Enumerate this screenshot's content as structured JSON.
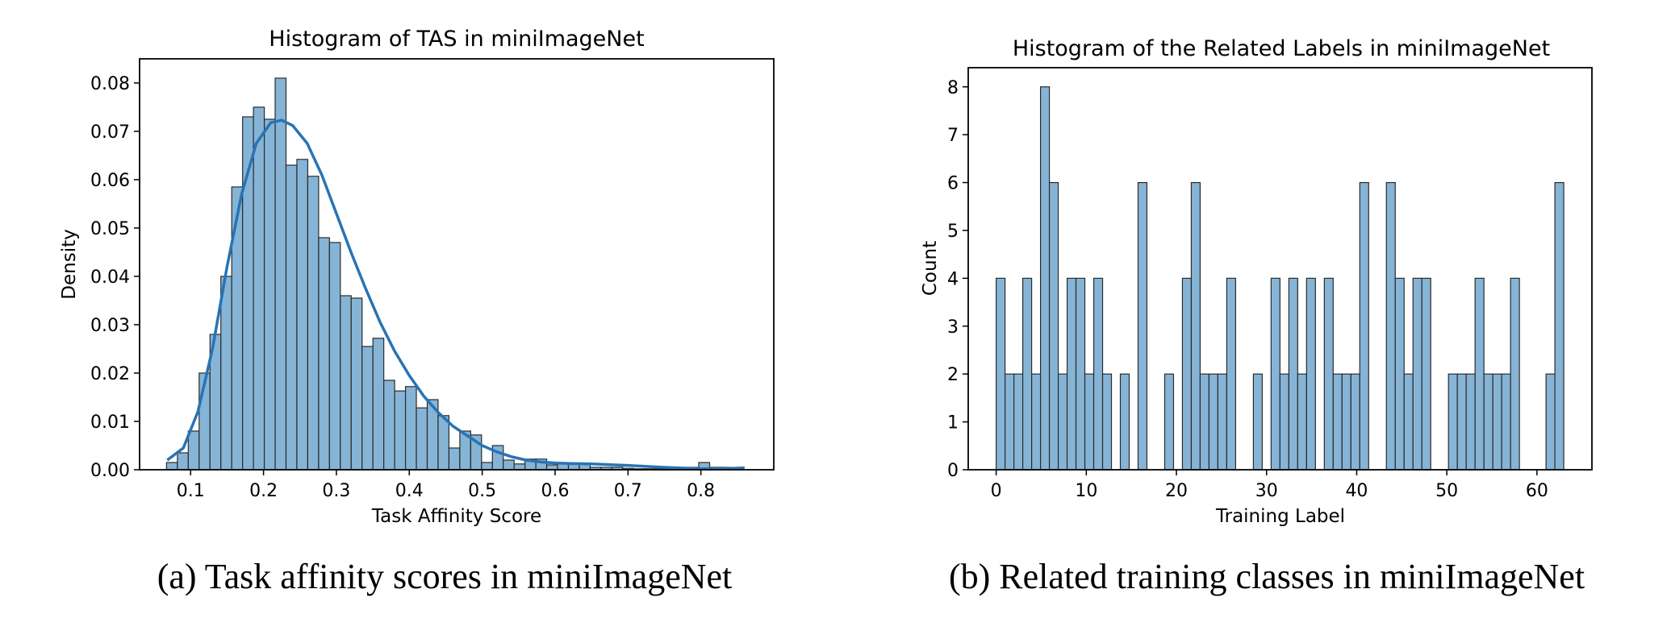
{
  "chart_data": [
    {
      "type": "bar",
      "title": "Histogram of TAS in miniImageNet",
      "xlabel": "Task Affinity Score",
      "ylabel": "Density",
      "xlim": [
        0.03,
        0.9
      ],
      "ylim": [
        0,
        0.085
      ],
      "xticks": [
        0.1,
        0.2,
        0.3,
        0.4,
        0.5,
        0.6,
        0.7,
        0.8
      ],
      "xtick_labels": [
        "0.1",
        "0.2",
        "0.3",
        "0.4",
        "0.5",
        "0.6",
        "0.7",
        "0.8"
      ],
      "yticks": [
        0,
        0.01,
        0.02,
        0.03,
        0.04,
        0.05,
        0.06,
        0.07,
        0.08
      ],
      "ytick_labels": [
        "0.00",
        "0.01",
        "0.02",
        "0.03",
        "0.04",
        "0.05",
        "0.06",
        "0.07",
        "0.08"
      ],
      "bin_start": 0.067,
      "bin_width": 0.0149,
      "values": [
        0.0015,
        0.0035,
        0.008,
        0.02,
        0.028,
        0.04,
        0.0585,
        0.073,
        0.075,
        0.0725,
        0.081,
        0.063,
        0.0642,
        0.0607,
        0.048,
        0.047,
        0.036,
        0.0355,
        0.0255,
        0.0272,
        0.0185,
        0.0163,
        0.0172,
        0.0128,
        0.0145,
        0.0112,
        0.0045,
        0.008,
        0.0072,
        0.0015,
        0.005,
        0.002,
        0.0012,
        0.0022,
        0.0022,
        0.001,
        0.0012,
        0.0012,
        0.0012,
        0.0005,
        0.0005,
        0.0005,
        0.0003,
        0.0002,
        0.0002,
        0.0002,
        0.0002,
        0.0003,
        0.0005,
        0.0015,
        0.0005,
        0.0005
      ],
      "kde": {
        "x": [
          0.068,
          0.09,
          0.11,
          0.13,
          0.15,
          0.17,
          0.19,
          0.21,
          0.225,
          0.24,
          0.26,
          0.28,
          0.3,
          0.32,
          0.34,
          0.36,
          0.38,
          0.4,
          0.42,
          0.44,
          0.46,
          0.48,
          0.5,
          0.52,
          0.54,
          0.56,
          0.58,
          0.6,
          0.62,
          0.65,
          0.7,
          0.75,
          0.8,
          0.83,
          0.86
        ],
        "y": [
          0.002,
          0.0045,
          0.012,
          0.025,
          0.042,
          0.057,
          0.0675,
          0.0718,
          0.0723,
          0.0712,
          0.0675,
          0.061,
          0.053,
          0.045,
          0.0375,
          0.0305,
          0.0245,
          0.0195,
          0.0152,
          0.0118,
          0.009,
          0.007,
          0.005,
          0.0037,
          0.0027,
          0.002,
          0.0016,
          0.0014,
          0.0013,
          0.0012,
          0.0009,
          0.0005,
          0.0002,
          0.0002,
          0.0004
        ]
      },
      "bar_color": "#86b4d6",
      "line_color": "#2774b5"
    },
    {
      "type": "bar",
      "title": "Histogram of the Related Labels in miniImageNet",
      "xlabel": "Training Label",
      "ylabel": "Count",
      "xlim": [
        -3.1,
        66.1
      ],
      "ylim": [
        0,
        8.4
      ],
      "xticks": [
        0,
        10,
        20,
        30,
        40,
        50,
        60
      ],
      "xtick_labels": [
        "0",
        "10",
        "20",
        "30",
        "40",
        "50",
        "60"
      ],
      "yticks": [
        0,
        1,
        2,
        3,
        4,
        5,
        6,
        7,
        8
      ],
      "ytick_labels": [
        "0",
        "1",
        "2",
        "3",
        "4",
        "5",
        "6",
        "7",
        "8"
      ],
      "bin_start": 0,
      "bin_width": 0.984,
      "values": [
        4,
        2,
        2,
        4,
        2,
        8,
        6,
        2,
        4,
        4,
        2,
        4,
        2,
        0,
        2,
        0,
        6,
        0,
        0,
        2,
        0,
        4,
        6,
        2,
        2,
        2,
        4,
        0,
        0,
        2,
        0,
        4,
        2,
        4,
        2,
        4,
        0,
        4,
        2,
        2,
        2,
        6,
        0,
        0,
        6,
        4,
        2,
        4,
        4,
        0,
        0,
        2,
        2,
        2,
        4,
        2,
        2,
        2,
        4,
        0,
        0,
        0,
        2,
        6
      ],
      "bar_color": "#86b4d6"
    }
  ],
  "captions": {
    "a": "(a) Task affinity scores in miniImageNet",
    "b": "(b) Related training classes in miniImageNet"
  }
}
